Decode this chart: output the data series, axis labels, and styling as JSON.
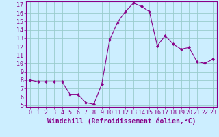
{
  "x": [
    0,
    1,
    2,
    3,
    4,
    5,
    6,
    7,
    8,
    9,
    10,
    11,
    12,
    13,
    14,
    15,
    16,
    17,
    18,
    19,
    20,
    21,
    22,
    23
  ],
  "y": [
    8,
    7.8,
    7.8,
    7.8,
    7.8,
    6.3,
    6.3,
    5.3,
    5.1,
    7.5,
    12.8,
    14.9,
    16.2,
    17.2,
    16.8,
    16.2,
    12.1,
    13.3,
    12.3,
    11.7,
    11.9,
    10.2,
    10.0,
    10.5
  ],
  "line_color": "#880088",
  "marker": "D",
  "marker_size": 2,
  "background_color": "#cceeff",
  "grid_color": "#99cccc",
  "xlabel": "Windchill (Refroidissement éolien,°C)",
  "xlabel_fontsize": 7,
  "ylim": [
    4.8,
    17.4
  ],
  "xlim": [
    -0.5,
    23.5
  ],
  "yticks": [
    5,
    6,
    7,
    8,
    9,
    10,
    11,
    12,
    13,
    14,
    15,
    16,
    17
  ],
  "xticks": [
    0,
    1,
    2,
    3,
    4,
    5,
    6,
    7,
    8,
    9,
    10,
    11,
    12,
    13,
    14,
    15,
    16,
    17,
    18,
    19,
    20,
    21,
    22,
    23
  ],
  "tick_fontsize": 6,
  "spine_color": "#880088"
}
